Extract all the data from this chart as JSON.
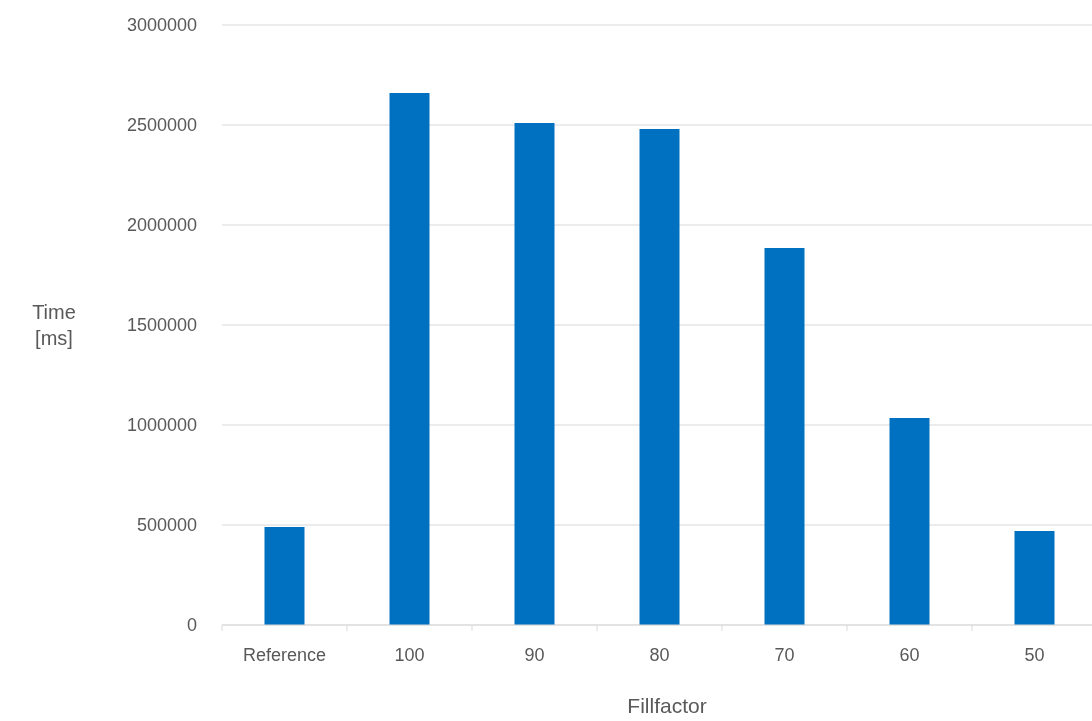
{
  "chart_data": {
    "type": "bar",
    "xlabel": "Fillfactor",
    "ylabel": "Time [ms]",
    "categories": [
      "Reference",
      "100",
      "90",
      "80",
      "70",
      "60",
      "50"
    ],
    "values": [
      490000,
      2660000,
      2510000,
      2480000,
      1885000,
      1035000,
      470000
    ],
    "color": "#0070c0",
    "ylim": [
      0,
      3000000
    ],
    "yticks": [
      0,
      500000,
      1000000,
      1500000,
      2000000,
      2500000,
      3000000
    ],
    "grid": "y"
  }
}
